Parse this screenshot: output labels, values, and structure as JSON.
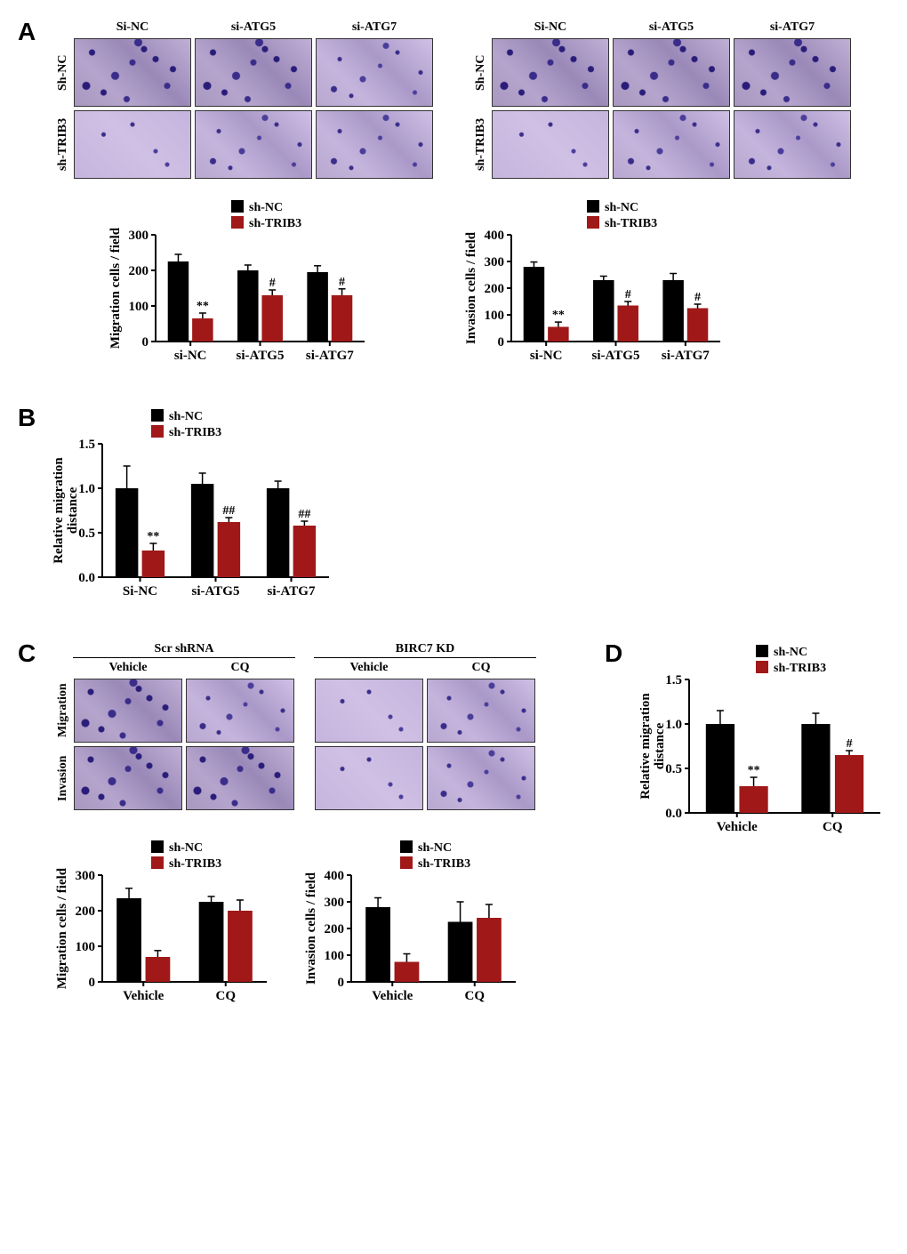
{
  "colors": {
    "series1": "#000000",
    "series2": "#a01818",
    "axis": "#000000",
    "bg": "#ffffff"
  },
  "legend_labels": {
    "series1": "sh-NC",
    "series2": "sh-TRIB3"
  },
  "panelA": {
    "label": "A",
    "grid_left": {
      "col_headers": [
        "Si-NC",
        "si-ATG5",
        "si-ATG7"
      ],
      "row_headers": [
        "Sh-NC",
        "sh-TRIB3"
      ]
    },
    "grid_right": {
      "col_headers": [
        "Si-NC",
        "si-ATG5",
        "si-ATG7"
      ],
      "row_headers": [
        "Sh-NC",
        "sh-TRIB3"
      ]
    },
    "chart_migration": {
      "type": "bar",
      "ylabel": "Migration cells / field",
      "ylim": [
        0,
        300
      ],
      "ytick_step": 100,
      "categories": [
        "si-NC",
        "si-ATG5",
        "si-ATG7"
      ],
      "series1": [
        225,
        200,
        195
      ],
      "series1_err": [
        20,
        15,
        18
      ],
      "series2": [
        65,
        130,
        130
      ],
      "series2_err": [
        15,
        15,
        18
      ],
      "annotations": [
        "**",
        "#",
        "#"
      ]
    },
    "chart_invasion": {
      "type": "bar",
      "ylabel": "Invasion cells / field",
      "ylim": [
        0,
        400
      ],
      "ytick_step": 100,
      "categories": [
        "si-NC",
        "si-ATG5",
        "si-ATG7"
      ],
      "series1": [
        280,
        230,
        230
      ],
      "series1_err": [
        18,
        15,
        25
      ],
      "series2": [
        55,
        135,
        125
      ],
      "series2_err": [
        18,
        15,
        15
      ],
      "annotations": [
        "**",
        "#",
        "#"
      ]
    }
  },
  "panelB": {
    "label": "B",
    "chart": {
      "type": "bar",
      "ylabel": "Relative migration\ndistance",
      "ylim": [
        0.0,
        1.5
      ],
      "ytick_step": 0.5,
      "categories": [
        "Si-NC",
        "si-ATG5",
        "si-ATG7"
      ],
      "series1": [
        1.0,
        1.05,
        1.0
      ],
      "series1_err": [
        0.25,
        0.12,
        0.08
      ],
      "series2": [
        0.3,
        0.62,
        0.58
      ],
      "series2_err": [
        0.08,
        0.05,
        0.05
      ],
      "annotations": [
        "**",
        "##",
        "##"
      ]
    }
  },
  "panelC": {
    "label": "C",
    "grid": {
      "group_headers": [
        "Scr shRNA",
        "BIRC7 KD"
      ],
      "sub_headers": [
        "Vehicle",
        "CQ"
      ],
      "row_headers": [
        "Migration",
        "Invasion"
      ]
    },
    "chart_migration": {
      "type": "bar",
      "ylabel": "Migration cells / field",
      "ylim": [
        0,
        300
      ],
      "ytick_step": 100,
      "categories": [
        "Vehicle",
        "CQ"
      ],
      "series1": [
        235,
        225
      ],
      "series1_err": [
        28,
        15
      ],
      "series2": [
        70,
        200
      ],
      "series2_err": [
        18,
        30
      ],
      "annotations": [
        "",
        ""
      ]
    },
    "chart_invasion": {
      "type": "bar",
      "ylabel": "Invasion cells / field",
      "ylim": [
        0,
        400
      ],
      "ytick_step": 100,
      "categories": [
        "Vehicle",
        "CQ"
      ],
      "series1": [
        280,
        225
      ],
      "series1_err": [
        35,
        75
      ],
      "series2": [
        75,
        240
      ],
      "series2_err": [
        30,
        50
      ],
      "annotations": [
        "",
        ""
      ]
    }
  },
  "panelD": {
    "label": "D",
    "chart": {
      "type": "bar",
      "ylabel": "Relative migration\ndistance",
      "ylim": [
        0.0,
        1.5
      ],
      "ytick_step": 0.5,
      "categories": [
        "Vehicle",
        "CQ"
      ],
      "series1": [
        1.0,
        1.0
      ],
      "series1_err": [
        0.15,
        0.12
      ],
      "series2": [
        0.3,
        0.65
      ],
      "series2_err": [
        0.1,
        0.05
      ],
      "annotations": [
        "**",
        "#"
      ]
    }
  }
}
